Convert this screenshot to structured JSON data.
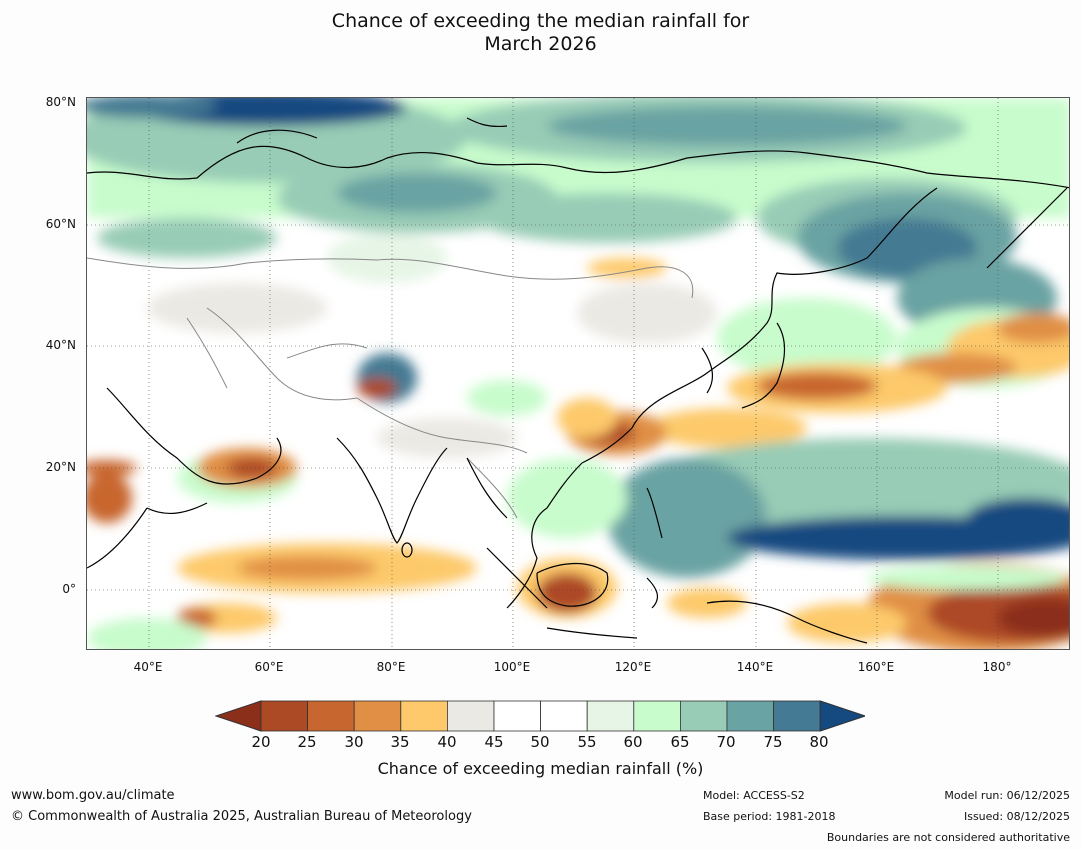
{
  "title_line1": "Chance of exceeding the median rainfall for",
  "title_line2": "March 2026",
  "map": {
    "lat_labels": [
      "80°N",
      "60°N",
      "40°N",
      "20°N",
      "0°"
    ],
    "lon_labels": [
      "40°E",
      "60°E",
      "80°E",
      "100°E",
      "120°E",
      "140°E",
      "160°E",
      "180°"
    ],
    "colors": {
      "ocean_white": "#ffffff",
      "coastline": "#000000",
      "border": "#888888"
    }
  },
  "colorbar": {
    "ticks": [
      "20",
      "25",
      "30",
      "35",
      "40",
      "45",
      "50",
      "55",
      "60",
      "65",
      "70",
      "75",
      "80"
    ],
    "colors": [
      "#8c2f1a",
      "#ad4a26",
      "#c8662f",
      "#e08f44",
      "#fdc96a",
      "#ebe9e4",
      "#ffffff",
      "#ffffff",
      "#e6f5e6",
      "#c8fccc",
      "#98ccb6",
      "#6aa3a3",
      "#447a93",
      "#144a80"
    ],
    "label": "Chance of exceeding median rainfall (%)"
  },
  "footer": {
    "website": "www.bom.gov.au/climate",
    "copyright": "© Commonwealth of Australia 2025, Australian Bureau of Meteorology",
    "model": "Model: ACCESS-S2",
    "base_period": "Base period: 1981-2018",
    "model_run": "Model run: 06/12/2025",
    "issued": "Issued: 08/12/2025",
    "disclaimer": "Boundaries are not considered authoritative"
  }
}
